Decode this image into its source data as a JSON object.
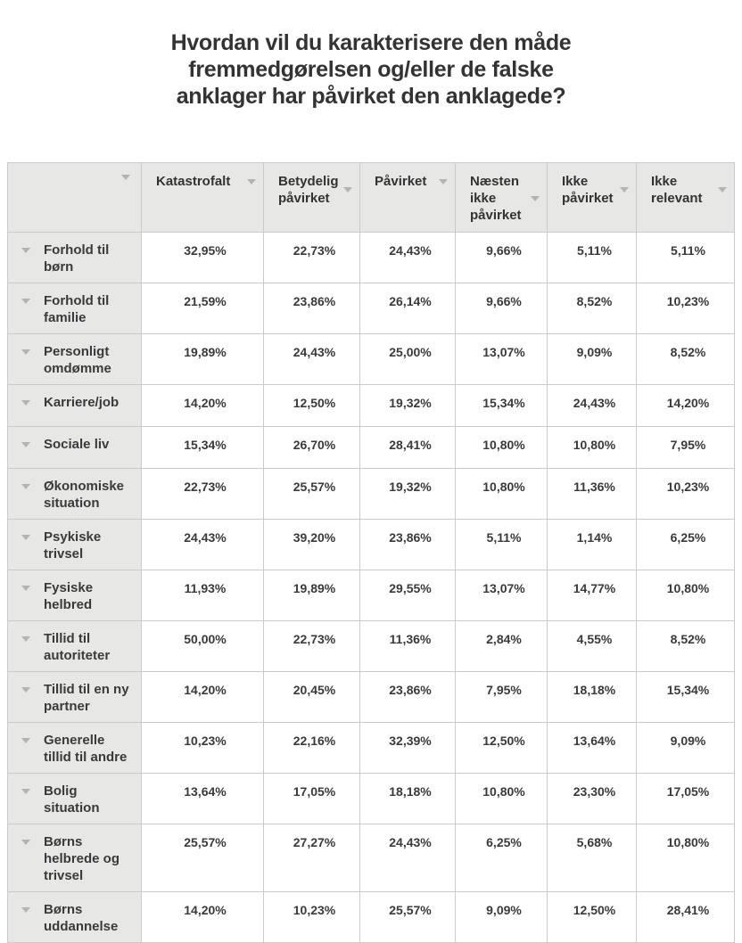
{
  "title_lines": [
    "Hvordan vil du karakterisere den måde",
    "fremmedgørelsen og/eller de falske",
    "anklager har påvirket den anklagede?"
  ],
  "chart_data": {
    "type": "table",
    "title": "Hvordan vil du karakterisere den måde fremmedgørelsen og/eller de falske anklager har påvirket den anklagede?",
    "columns": [
      "Katastrofalt",
      "Betydelig påvirket",
      "Påvirket",
      "Næsten ikke påvirket",
      "Ikke påvirket",
      "Ikke relevant"
    ],
    "rows": [
      {
        "label": "Forhold til børn",
        "values": [
          "32,95%",
          "22,73%",
          "24,43%",
          "9,66%",
          "5,11%",
          "5,11%"
        ]
      },
      {
        "label": "Forhold til familie",
        "values": [
          "21,59%",
          "23,86%",
          "26,14%",
          "9,66%",
          "8,52%",
          "10,23%"
        ]
      },
      {
        "label": "Personligt omdømme",
        "values": [
          "19,89%",
          "24,43%",
          "25,00%",
          "13,07%",
          "9,09%",
          "8,52%"
        ]
      },
      {
        "label": "Karriere/job",
        "values": [
          "14,20%",
          "12,50%",
          "19,32%",
          "15,34%",
          "24,43%",
          "14,20%"
        ]
      },
      {
        "label": "Sociale liv",
        "values": [
          "15,34%",
          "26,70%",
          "28,41%",
          "10,80%",
          "10,80%",
          "7,95%"
        ]
      },
      {
        "label": "Økonomiske situation",
        "values": [
          "22,73%",
          "25,57%",
          "19,32%",
          "10,80%",
          "11,36%",
          "10,23%"
        ]
      },
      {
        "label": "Psykiske trivsel",
        "values": [
          "24,43%",
          "39,20%",
          "23,86%",
          "5,11%",
          "1,14%",
          "6,25%"
        ]
      },
      {
        "label": "Fysiske helbred",
        "values": [
          "11,93%",
          "19,89%",
          "29,55%",
          "13,07%",
          "14,77%",
          "10,80%"
        ]
      },
      {
        "label": "Tillid til autoriteter",
        "values": [
          "50,00%",
          "22,73%",
          "11,36%",
          "2,84%",
          "4,55%",
          "8,52%"
        ]
      },
      {
        "label": "Tillid til en ny partner",
        "values": [
          "14,20%",
          "20,45%",
          "23,86%",
          "7,95%",
          "18,18%",
          "15,34%"
        ]
      },
      {
        "label": "Generelle tillid til andre",
        "values": [
          "10,23%",
          "22,16%",
          "32,39%",
          "12,50%",
          "13,64%",
          "9,09%"
        ]
      },
      {
        "label": "Bolig situation",
        "values": [
          "13,64%",
          "17,05%",
          "18,18%",
          "10,80%",
          "23,30%",
          "17,05%"
        ]
      },
      {
        "label": "Børns helbrede og trivsel",
        "values": [
          "25,57%",
          "27,27%",
          "24,43%",
          "6,25%",
          "5,68%",
          "10,80%"
        ]
      },
      {
        "label": "Børns uddannelse",
        "values": [
          "14,20%",
          "10,23%",
          "25,57%",
          "9,09%",
          "12,50%",
          "28,41%"
        ]
      }
    ],
    "value_format": "percent with Danish decimal comma",
    "layout": {
      "grid": true,
      "header_row": true,
      "row_label_column": true,
      "sort_arrows": true
    }
  },
  "icons": {
    "sort": "triangle-down"
  },
  "colors": {
    "header_bg": "#e7e7e5",
    "row_label_bg": "#e7e7e5",
    "border": "#cbcbc9",
    "text": "#3a3a3a",
    "sort_icon": "#b3b3b3",
    "title": "#333333"
  }
}
